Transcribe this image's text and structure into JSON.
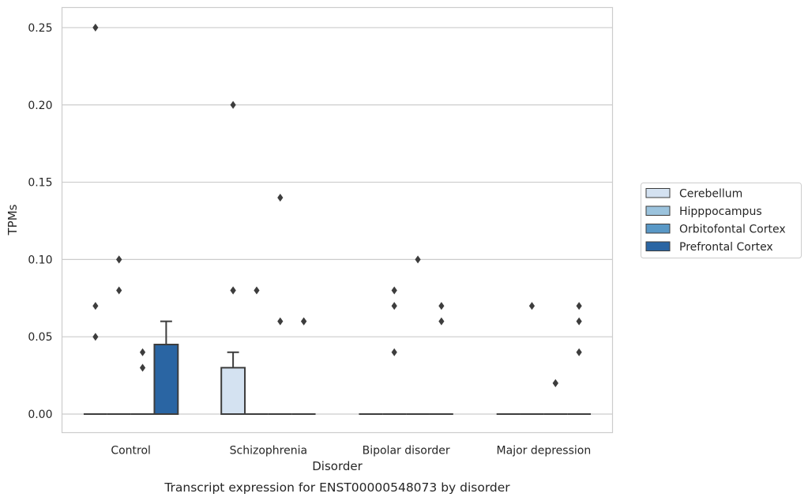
{
  "caption": "Transcript expression for ENST00000548073 by disorder",
  "chart_data": {
    "type": "box",
    "xlabel": "Disorder",
    "ylabel": "TPMs",
    "ylim": [
      -0.012,
      0.263
    ],
    "yticks": [
      0.0,
      0.05,
      0.1,
      0.15,
      0.2,
      0.25
    ],
    "ytick_labels": [
      "0.00",
      "0.05",
      "0.10",
      "0.15",
      "0.20",
      "0.25"
    ],
    "grid": "horizontal",
    "legend_position": "right",
    "categories": [
      "Control",
      "Schizophrenia",
      "Bipolar disorder",
      "Major depression"
    ],
    "series": [
      {
        "name": "Cerebellum",
        "color": "#d4e2f1",
        "boxes": [
          {
            "q1": 0,
            "median": 0,
            "q3": 0,
            "whisker_high": 0,
            "outliers": [
              0.25,
              0.07,
              0.05
            ]
          },
          {
            "q1": 0,
            "median": 0,
            "q3": 0.03,
            "whisker_high": 0.04,
            "outliers": [
              0.2,
              0.08,
              0.08
            ]
          },
          {
            "q1": 0,
            "median": 0,
            "q3": 0,
            "whisker_high": 0,
            "outliers": []
          },
          {
            "q1": 0,
            "median": 0,
            "q3": 0,
            "whisker_high": 0,
            "outliers": []
          }
        ]
      },
      {
        "name": "Hipppocampus",
        "color": "#9bc3dd",
        "boxes": [
          {
            "q1": 0,
            "median": 0,
            "q3": 0,
            "whisker_high": 0,
            "outliers": [
              0.1,
              0.08,
              0.1
            ]
          },
          {
            "q1": 0,
            "median": 0,
            "q3": 0,
            "whisker_high": 0,
            "outliers": [
              0.08
            ]
          },
          {
            "q1": 0,
            "median": 0,
            "q3": 0,
            "whisker_high": 0,
            "outliers": [
              0.08,
              0.07,
              0.04
            ]
          },
          {
            "q1": 0,
            "median": 0,
            "q3": 0,
            "whisker_high": 0,
            "outliers": [
              0.07
            ]
          }
        ]
      },
      {
        "name": "Orbitofontal Cortex",
        "color": "#5998c6",
        "boxes": [
          {
            "q1": 0,
            "median": 0,
            "q3": 0,
            "whisker_high": 0,
            "outliers": [
              0.04,
              0.03
            ]
          },
          {
            "q1": 0,
            "median": 0,
            "q3": 0,
            "whisker_high": 0,
            "outliers": [
              0.14,
              0.06
            ]
          },
          {
            "q1": 0,
            "median": 0,
            "q3": 0,
            "whisker_high": 0,
            "outliers": [
              0.1
            ]
          },
          {
            "q1": 0,
            "median": 0,
            "q3": 0,
            "whisker_high": 0,
            "outliers": [
              0.02,
              0.02
            ]
          }
        ]
      },
      {
        "name": "Prefrontal Cortex",
        "color": "#2a65a3",
        "boxes": [
          {
            "q1": 0,
            "median": 0,
            "q3": 0.045,
            "whisker_high": 0.06,
            "outliers": []
          },
          {
            "q1": 0,
            "median": 0,
            "q3": 0,
            "whisker_high": 0,
            "outliers": [
              0.06,
              0.06
            ]
          },
          {
            "q1": 0,
            "median": 0,
            "q3": 0,
            "whisker_high": 0,
            "outliers": [
              0.07,
              0.06
            ]
          },
          {
            "q1": 0,
            "median": 0,
            "q3": 0,
            "whisker_high": 0,
            "outliers": [
              0.07,
              0.06,
              0.04
            ]
          }
        ]
      }
    ]
  }
}
